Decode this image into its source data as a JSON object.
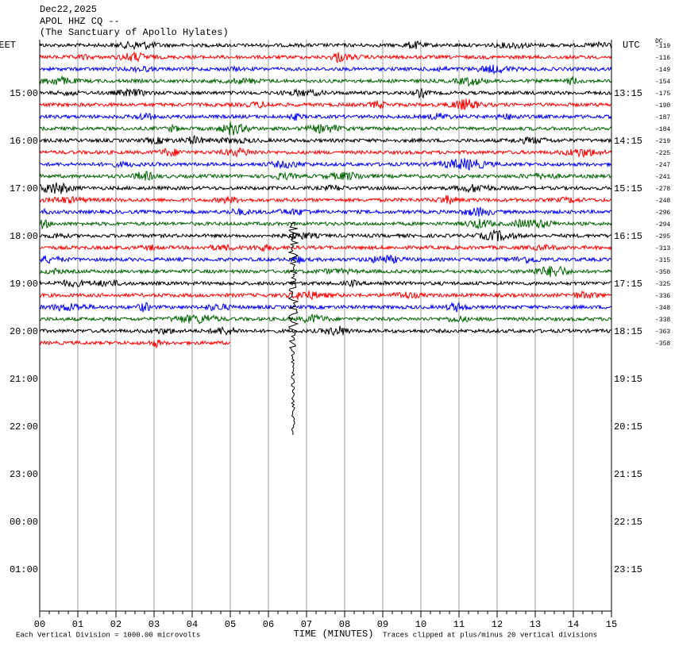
{
  "header": {
    "lines": [
      "Dec22,2025",
      "APOL HHZ CQ --",
      "(The Sanctuary of Apollo Hylates)"
    ]
  },
  "left_axis": {
    "title": "EET",
    "labels": [
      "15:00",
      "16:00",
      "17:00",
      "18:00",
      "19:00",
      "20:00",
      "21:00",
      "22:00",
      "23:00",
      "00:00",
      "01:00"
    ]
  },
  "right_axis": {
    "title": "UTC",
    "labels": [
      "13:15",
      "14:15",
      "15:15",
      "16:15",
      "17:15",
      "18:15",
      "19:15",
      "20:15",
      "21:15",
      "22:15",
      "23:15"
    ]
  },
  "dc": {
    "title": "DC",
    "values": [
      "-119",
      "-116",
      "-149",
      "-154",
      "-175",
      "-190",
      "-187",
      "-184",
      "-219",
      "-225",
      "-247",
      "-241",
      "-278",
      "-248",
      "-296",
      "-294",
      "-295",
      "-313",
      "-315",
      "-350",
      "-325",
      "-336",
      "-348",
      "-338",
      "-363",
      "-358"
    ]
  },
  "x_axis": {
    "title": "TIME (MINUTES)",
    "labels": [
      "00",
      "01",
      "02",
      "03",
      "04",
      "05",
      "06",
      "07",
      "08",
      "09",
      "10",
      "11",
      "12",
      "13",
      "14",
      "15"
    ]
  },
  "footer": {
    "scale": "Each Vertical Division = 1000.00 microvolts",
    "clip": "Traces clipped at plus/minus 20 vertical divisions"
  }
}
